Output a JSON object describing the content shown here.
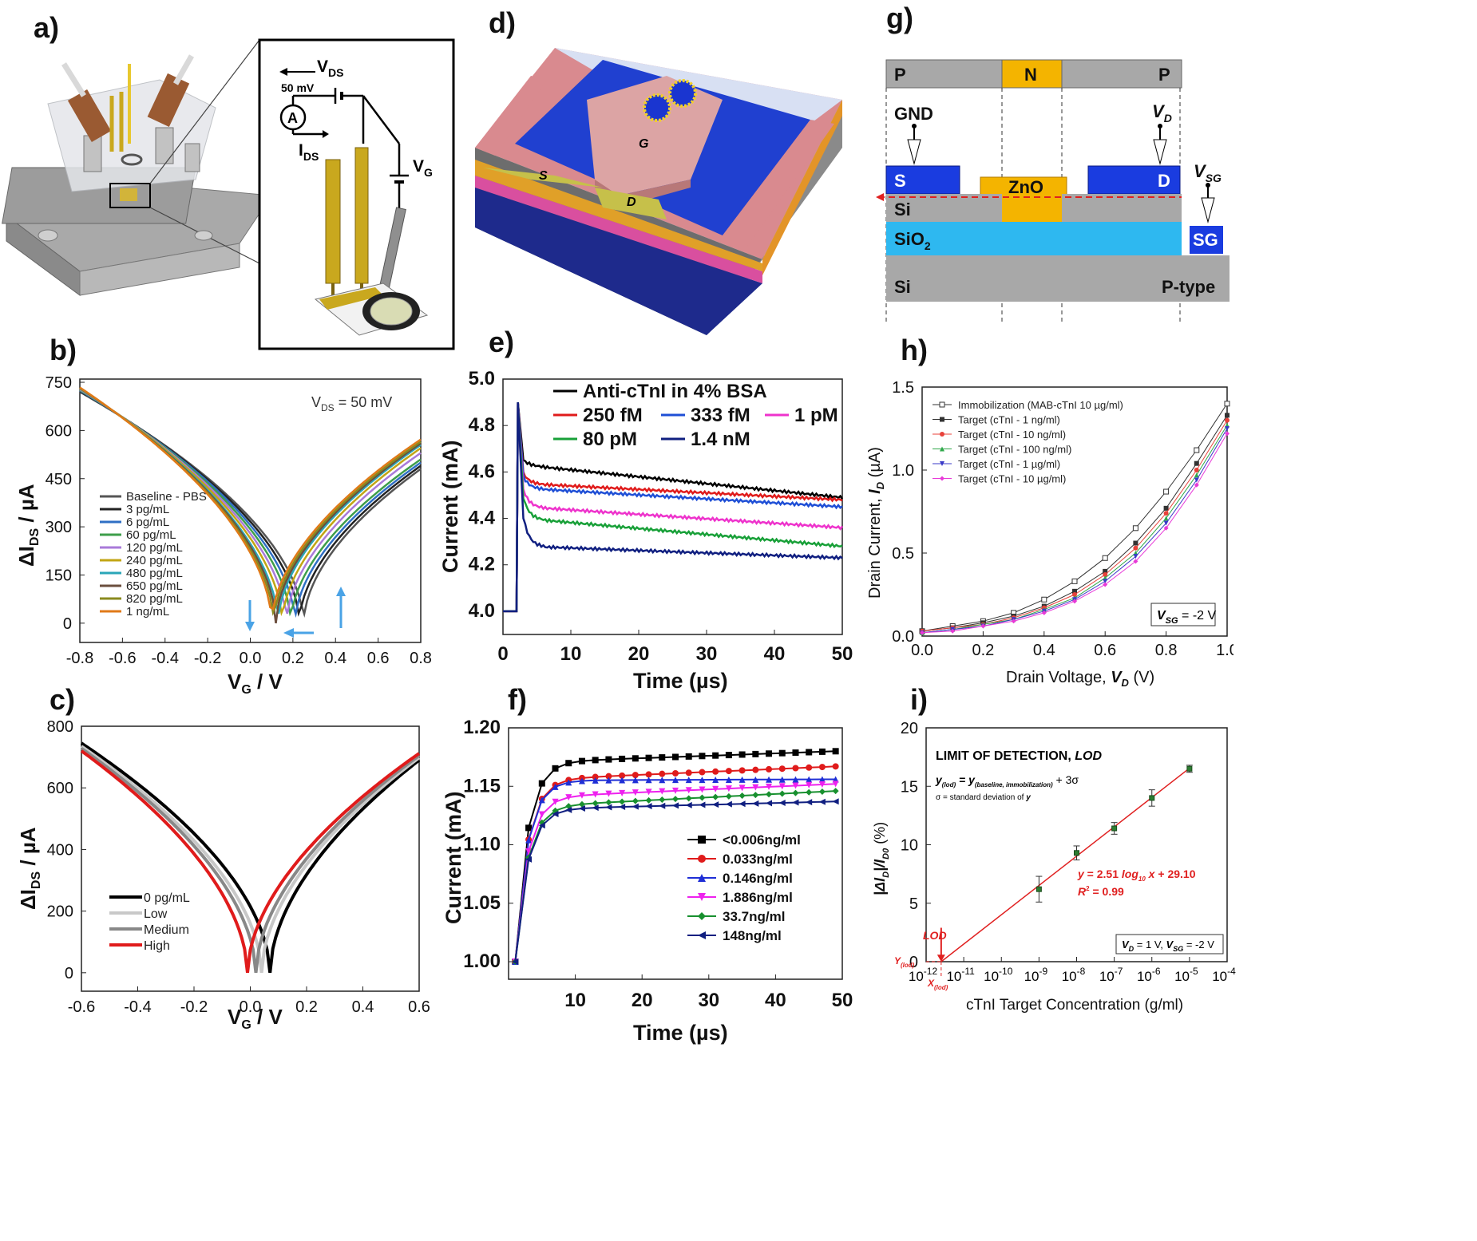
{
  "panel_labels": {
    "a": "a)",
    "b": "b)",
    "c": "c)",
    "d": "d)",
    "e": "e)",
    "f": "f)",
    "g": "g)",
    "h": "h)",
    "i": "i)"
  },
  "panel_a": {
    "vds": "V",
    "vds_sub": "DS",
    "vds_value": "50 mV",
    "ammeter": "A",
    "ids": "I",
    "ids_sub": "DS",
    "vg": "V",
    "vg_sub": "G"
  },
  "panel_d": {
    "source": "S",
    "drain": "D",
    "gate": "G"
  },
  "panel_g": {
    "top_regions": [
      "P",
      "N",
      "P"
    ],
    "gnd": "GND",
    "vd": "V",
    "vd_sub": "D",
    "vsg": "V",
    "vsg_sub": "SG",
    "source": "S",
    "drain": "D",
    "zno": "ZnO",
    "si_top": "Si",
    "sio2": "SiO",
    "sio2_sub": "2",
    "si_bottom": "Si",
    "ptype": "P-type",
    "sg": "SG"
  },
  "chart_data": [
    {
      "id": "b",
      "type": "line",
      "annotation": "V",
      "annotation_sub": "DS",
      "annotation_rest": " = 50 mV",
      "xlabel": "V",
      "xlabel_sub": "G",
      "xlabel_rest": " / V",
      "ylabel": "ΔI",
      "ylabel_sub": "DS",
      "ylabel_rest": " / µA",
      "xlim": [
        -0.8,
        0.8
      ],
      "ylim": [
        -60,
        760
      ],
      "xticks": [
        -0.8,
        -0.6,
        -0.4,
        -0.2,
        0.0,
        0.2,
        0.4,
        0.6,
        0.8
      ],
      "xtick_labels": [
        "-0.8",
        "-0.6",
        "-0.4",
        "-0.2",
        "0.0",
        "0.2",
        "0.4",
        "0.6",
        "0.8"
      ],
      "yticks": [
        0,
        150,
        300,
        450,
        600,
        750
      ],
      "ytick_labels": [
        "0",
        "150",
        "300",
        "450",
        "600",
        "750"
      ],
      "series": [
        {
          "name": "Baseline - PBS",
          "color": "#555555",
          "min_x": 0.25,
          "left": 720,
          "right": 480
        },
        {
          "name": "3 pg/mL",
          "color": "#222222",
          "min_x": 0.23,
          "left": 722,
          "right": 490
        },
        {
          "name": "6 pg/mL",
          "color": "#2f6fc4",
          "min_x": 0.21,
          "left": 724,
          "right": 500
        },
        {
          "name": "60 pg/mL",
          "color": "#3e9e4a",
          "min_x": 0.19,
          "left": 726,
          "right": 510
        },
        {
          "name": "120 pg/mL",
          "color": "#a97ad9",
          "min_x": 0.17,
          "left": 728,
          "right": 530
        },
        {
          "name": "240 pg/mL",
          "color": "#c2a514",
          "min_x": 0.15,
          "left": 730,
          "right": 545
        },
        {
          "name": "480 pg/mL",
          "color": "#2aa6b8",
          "min_x": 0.13,
          "left": 731,
          "right": 555
        },
        {
          "name": "650 pg/mL",
          "color": "#6b4e3d",
          "min_x": 0.12,
          "left": 732,
          "right": 560
        },
        {
          "name": "820 pg/mL",
          "color": "#8a8a1f",
          "min_x": 0.11,
          "left": 733,
          "right": 565
        },
        {
          "name": "1 ng/mL",
          "color": "#e07a18",
          "min_x": 0.1,
          "left": 734,
          "right": 572
        }
      ]
    },
    {
      "id": "c",
      "type": "line",
      "xlabel": "V",
      "xlabel_sub": "G",
      "xlabel_rest": " / V",
      "ylabel": "ΔI",
      "ylabel_sub": "DS",
      "ylabel_rest": " / µA",
      "xlim": [
        -0.6,
        0.6
      ],
      "ylim": [
        -60,
        800
      ],
      "xticks": [
        -0.6,
        -0.4,
        -0.2,
        0.0,
        0.2,
        0.4,
        0.6
      ],
      "xtick_labels": [
        "-0.6",
        "-0.4",
        "-0.2",
        "0.0",
        "0.2",
        "0.4",
        "0.6"
      ],
      "yticks": [
        0,
        200,
        400,
        600,
        800
      ],
      "ytick_labels": [
        "0",
        "200",
        "400",
        "600",
        "800"
      ],
      "series": [
        {
          "name": "0 pg/mL",
          "color": "#000000",
          "min_x": 0.07,
          "left": 745,
          "right": 690
        },
        {
          "name": "Low",
          "color": "#c8c8c8",
          "min_x": 0.04,
          "left": 735,
          "right": 698
        },
        {
          "name": "Medium",
          "color": "#888888",
          "min_x": 0.02,
          "left": 728,
          "right": 705
        },
        {
          "name": "High",
          "color": "#e01b1b",
          "min_x": -0.01,
          "left": 720,
          "right": 712
        }
      ]
    },
    {
      "id": "e",
      "type": "line",
      "xlabel": "Time (µs)",
      "ylabel": "Current (mA)",
      "xlim": [
        0,
        50
      ],
      "ylim": [
        3.9,
        5.0
      ],
      "xticks": [
        0,
        10,
        20,
        30,
        40,
        50
      ],
      "xtick_labels": [
        "0",
        "10",
        "20",
        "30",
        "40",
        "50"
      ],
      "yticks": [
        4.0,
        4.2,
        4.4,
        4.6,
        4.8,
        5.0
      ],
      "ytick_labels": [
        "4.0",
        "4.2",
        "4.4",
        "4.6",
        "4.8",
        "5.0"
      ],
      "series": [
        {
          "name": "Anti-cTnI in 4% BSA",
          "color": "#000000",
          "plateau_start": 4.63,
          "plateau_end": 4.49
        },
        {
          "name": "250 fM",
          "color": "#e01b1b",
          "plateau_start": 4.55,
          "plateau_end": 4.48
        },
        {
          "name": "333 fM",
          "color": "#1f4fd6",
          "plateau_start": 4.53,
          "plateau_end": 4.45
        },
        {
          "name": "1 pM",
          "color": "#ee33cc",
          "plateau_start": 4.45,
          "plateau_end": 4.36
        },
        {
          "name": "80 pM",
          "color": "#18a038",
          "plateau_start": 4.4,
          "plateau_end": 4.28
        },
        {
          "name": "1.4 nM",
          "color": "#101f80",
          "plateau_start": 4.28,
          "plateau_end": 4.23
        }
      ]
    },
    {
      "id": "f",
      "type": "line",
      "xlabel": "Time (µs)",
      "ylabel": "Current (mA)",
      "xlim": [
        0,
        50
      ],
      "ylim": [
        0.985,
        1.2
      ],
      "xticks": [
        10,
        20,
        30,
        40,
        50
      ],
      "xtick_labels": [
        "10",
        "20",
        "30",
        "40",
        "50"
      ],
      "yticks": [
        1.0,
        1.05,
        1.1,
        1.15,
        1.2
      ],
      "ytick_labels": [
        "1.00",
        "1.05",
        "1.10",
        "1.15",
        "1.20"
      ],
      "series": [
        {
          "name": "<0.006ng/ml",
          "color": "#000000",
          "marker": "square",
          "plateau": 1.17,
          "end": 1.18
        },
        {
          "name": "0.033ng/ml",
          "color": "#e01b1b",
          "marker": "circle",
          "plateau": 1.155,
          "end": 1.167
        },
        {
          "name": "0.146ng/ml",
          "color": "#1f2fd6",
          "marker": "triangle",
          "plateau": 1.155,
          "end": 1.156
        },
        {
          "name": "1.886ng/ml",
          "color": "#ee22ee",
          "marker": "triangle-down",
          "plateau": 1.14,
          "end": 1.152
        },
        {
          "name": "33.7ng/ml",
          "color": "#18902f",
          "marker": "diamond",
          "plateau": 1.132,
          "end": 1.146
        },
        {
          "name": "148ng/ml",
          "color": "#101f80",
          "marker": "triangle-left",
          "plateau": 1.13,
          "end": 1.137
        }
      ]
    },
    {
      "id": "h",
      "type": "line",
      "xlabel": "Drain Voltage, ",
      "xlabel_var": "V",
      "xlabel_sub": "D",
      "xlabel_rest": " (V)",
      "ylabel": "Drain Current, ",
      "ylabel_var": "I",
      "ylabel_sub": "D",
      "ylabel_rest": " (µA)",
      "annotation_var": "V",
      "annotation_sub": "SG",
      "annotation_rest": " = -2 V",
      "xlim": [
        0.0,
        1.0
      ],
      "ylim": [
        0.0,
        1.5
      ],
      "xticks": [
        0.0,
        0.2,
        0.4,
        0.6,
        0.8,
        1.0
      ],
      "xtick_labels": [
        "0.0",
        "0.2",
        "0.4",
        "0.6",
        "0.8",
        "1.0"
      ],
      "yticks": [
        0.0,
        0.5,
        1.0,
        1.5
      ],
      "ytick_labels": [
        "0.0",
        "0.5",
        "1.0",
        "1.5"
      ],
      "x": [
        0.0,
        0.1,
        0.2,
        0.3,
        0.4,
        0.5,
        0.6,
        0.7,
        0.8,
        0.9,
        1.0
      ],
      "series": [
        {
          "name": "Immobilization (MAB-cTnI 10 µg/ml)",
          "color": "#333333",
          "marker": "open-square",
          "values": [
            0.03,
            0.06,
            0.09,
            0.14,
            0.22,
            0.33,
            0.47,
            0.65,
            0.87,
            1.12,
            1.4
          ]
        },
        {
          "name": "Target (cTnI - 1 ng/ml)",
          "color": "#333333",
          "marker": "square",
          "values": [
            0.03,
            0.05,
            0.08,
            0.12,
            0.18,
            0.27,
            0.39,
            0.56,
            0.77,
            1.04,
            1.33
          ]
        },
        {
          "name": "Target (cTnI - 10 ng/ml)",
          "color": "#e8413a",
          "marker": "circle",
          "values": [
            0.03,
            0.05,
            0.07,
            0.11,
            0.17,
            0.25,
            0.37,
            0.53,
            0.74,
            1.0,
            1.3
          ]
        },
        {
          "name": "Target (cTnI - 100 ng/ml)",
          "color": "#2fa84a",
          "marker": "triangle",
          "values": [
            0.02,
            0.04,
            0.07,
            0.1,
            0.16,
            0.23,
            0.35,
            0.5,
            0.71,
            0.97,
            1.27
          ]
        },
        {
          "name": "Target (cTnI - 1 µg/ml)",
          "color": "#3a3ac8",
          "marker": "triangle-down",
          "values": [
            0.02,
            0.04,
            0.06,
            0.1,
            0.15,
            0.22,
            0.33,
            0.48,
            0.68,
            0.94,
            1.25
          ]
        },
        {
          "name": "Target (cTnI - 10 µg/ml)",
          "color": "#e83ad8",
          "marker": "diamond",
          "values": [
            0.02,
            0.03,
            0.06,
            0.09,
            0.14,
            0.21,
            0.31,
            0.45,
            0.65,
            0.91,
            1.22
          ]
        }
      ]
    },
    {
      "id": "i",
      "type": "scatter",
      "title": "LIMIT OF DETECTION, ",
      "title_var": "LOD",
      "formula_left": "y",
      "formula_left_sub": "(lod)",
      "formula_mid": " = y",
      "formula_mid_sub": "(baseline, immobilization)",
      "formula_right": " + 3σ",
      "sigma_note": "σ = standard deviation of ",
      "sigma_var": "y",
      "fit_eq_a": "y",
      "fit_eq_b": " = 2.51 ",
      "fit_eq_c": "log",
      "fit_eq_sub": "10",
      "fit_eq_d": " x",
      "fit_eq_e": " + 29.10",
      "r2_a": "R",
      "r2_sup": "2",
      "r2_b": " = 0.99",
      "lod_label": "LOD",
      "y_lod": "Y",
      "y_lod_sub": "(lod)",
      "x_lod": "X",
      "x_lod_sub": "(lod)",
      "annotation_a": "V",
      "annotation_a_sub": "D",
      "annotation_b": " = 1 V, ",
      "annotation_c": "V",
      "annotation_c_sub": "SG",
      "annotation_d": " = -2 V",
      "xlabel": "cTnI Target Concentration (g/ml)",
      "ylabel": "|ΔI",
      "ylabel_sub": "D",
      "ylabel_mid": "|/I",
      "ylabel_sub2": "D0",
      "ylabel_rest": " (%)",
      "x_scale": "log",
      "xlim_exp": [
        -12,
        -4
      ],
      "ylim": [
        0,
        20
      ],
      "xtick_exps": [
        -12,
        -11,
        -10,
        -9,
        -8,
        -7,
        -6,
        -5,
        -4
      ],
      "xtick_base": "10",
      "xtick_labels": [
        "-12",
        "-11",
        "-10",
        "-9",
        "-8",
        "-7",
        "-6",
        "-5",
        "-4"
      ],
      "yticks": [
        0,
        5,
        10,
        15,
        20
      ],
      "ytick_labels": [
        "0",
        "5",
        "10",
        "15",
        "20"
      ],
      "points_exp": [
        -9,
        -8,
        -7,
        -6,
        -5
      ],
      "values": [
        6.2,
        9.3,
        11.4,
        14.0,
        16.5
      ],
      "errors": [
        1.1,
        0.6,
        0.5,
        0.7,
        0.3
      ],
      "fit_slope": 2.51,
      "fit_intercept": 29.1,
      "lod_exp": -11.6
    }
  ]
}
